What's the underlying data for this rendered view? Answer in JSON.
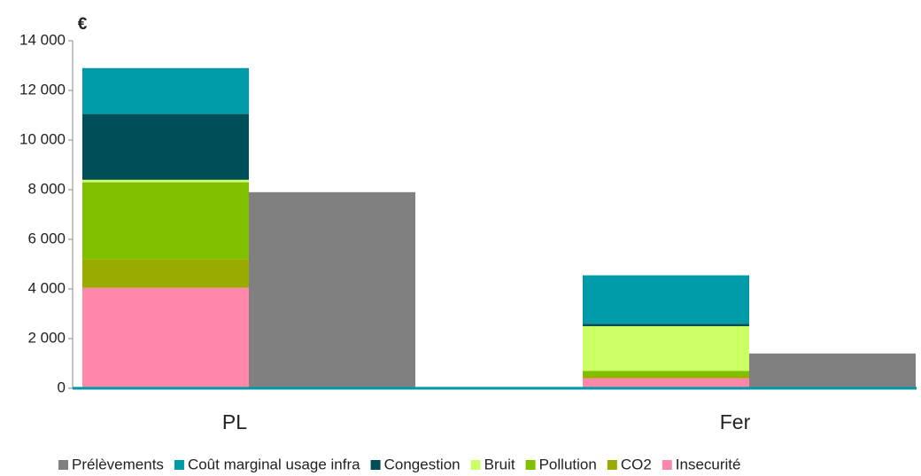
{
  "chart_data": {
    "type": "stacked_bar",
    "y_label": "€",
    "categories": [
      "PL",
      "Fer"
    ],
    "ylim": [
      0,
      14000
    ],
    "yticks": [
      0,
      {
        "value": 2000,
        "label": "2 000"
      },
      {
        "value": 4000,
        "label": "4 000"
      },
      {
        "value": 6000,
        "label": "6 000"
      },
      {
        "value": 8000,
        "label": "8 000"
      },
      {
        "value": 10000,
        "label": "10 000"
      },
      {
        "value": 12000,
        "label": "12 000"
      },
      {
        "value": 14000,
        "label": "14 000"
      }
    ],
    "legend": "bottom",
    "series": [
      {
        "name": "Prélèvements",
        "color": "#808080",
        "stack": 1,
        "values": [
          7900,
          1400
        ]
      },
      {
        "name": "Coût marginal usage infra",
        "color": "#009ba8",
        "stack": 0,
        "values": [
          1850,
          1950
        ]
      },
      {
        "name": "Congestion",
        "color": "#004f58",
        "stack": 0,
        "values": [
          2650,
          100
        ]
      },
      {
        "name": "Bruit",
        "color": "#ccff66",
        "stack": 0,
        "values": [
          100,
          1800
        ]
      },
      {
        "name": "Pollution",
        "color": "#80c000",
        "stack": 0,
        "values": [
          3100,
          200
        ]
      },
      {
        "name": "CO2",
        "color": "#9aab00",
        "stack": 0,
        "values": [
          1150,
          100
        ]
      },
      {
        "name": "Insecurité",
        "color": "#ff88aa",
        "stack": 0,
        "values": [
          4050,
          400
        ]
      }
    ]
  }
}
